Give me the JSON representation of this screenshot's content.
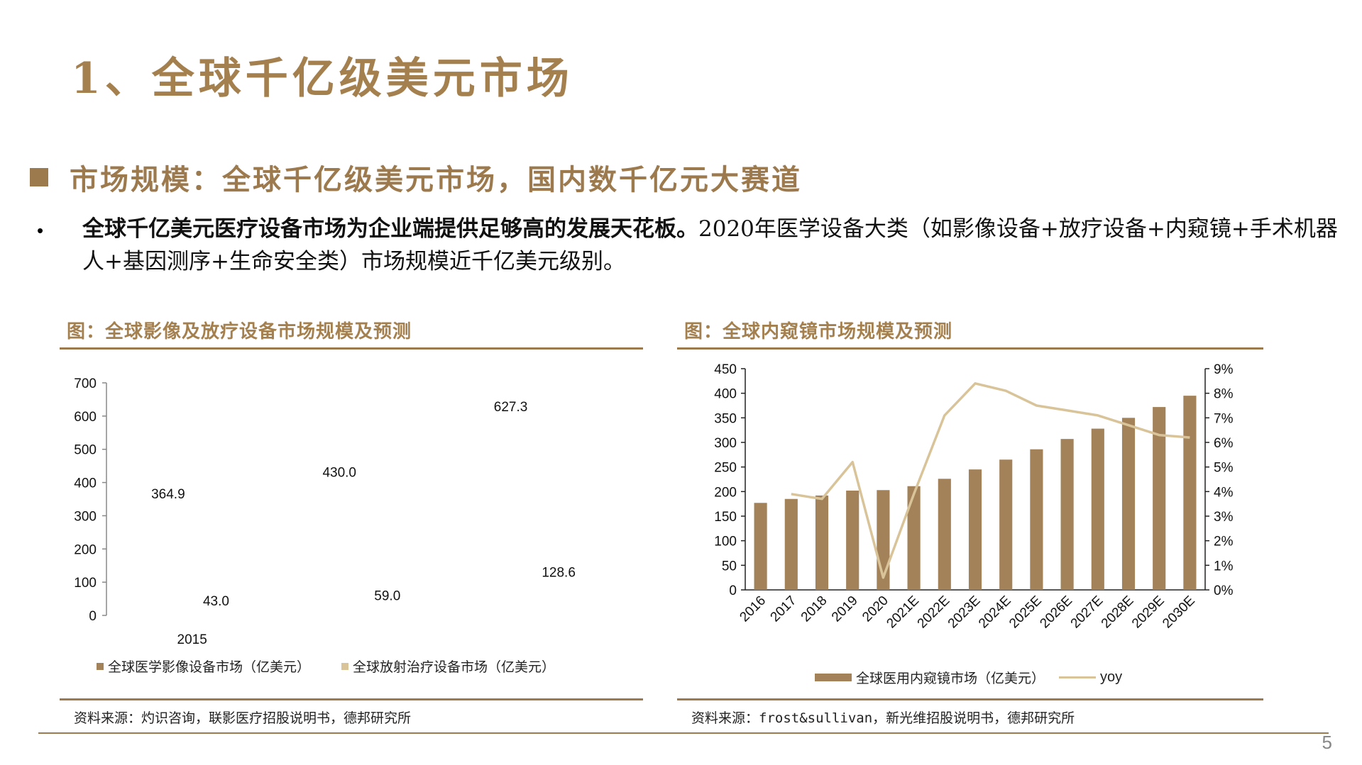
{
  "title": "1、全球千亿级美元市场",
  "section": "市场规模：全球千亿级美元市场，国内数千亿元大赛道",
  "bullet": {
    "marker": "•",
    "bold": "全球千亿美元医疗设备市场为企业端提供足够高的发展天花板。",
    "normal": "2020年医学设备大类（如影像设备+放疗设备+内窥镜+手术机器人+基因测序+生命安全类）市场规模近千亿美元级别。"
  },
  "left_panel": {
    "title": "图：全球影像及放疗设备市场规模及预测",
    "source": "资料来源：灼识咨询，联影医疗招股说明书，德邦研究所",
    "legend": [
      "全球医学影像设备市场（亿美元）",
      "全球放射治疗设备市场（亿美元）"
    ]
  },
  "right_panel": {
    "title": "图：全球内窥镜市场规模及预测",
    "source": "资料来源：frost&sullivan，新光维招股说明书，德邦研究所",
    "legend": [
      "全球医用内窥镜市场（亿美元）",
      "yoy"
    ]
  },
  "colors": {
    "brand": "#A5804F",
    "bar": "#A3825A",
    "line": "#D9C49A",
    "swatch_left_1": "#A3825A",
    "swatch_left_2": "#D9C49A"
  },
  "page_number": "5",
  "chart_data": [
    {
      "type": "bar",
      "title": "图：全球影像及放疗设备市场规模及预测",
      "categories": [
        "2015",
        "",
        ""
      ],
      "series": [
        {
          "name": "全球医学影像设备市场（亿美元）",
          "values": [
            364.9,
            430.0,
            627.3
          ]
        },
        {
          "name": "全球放射治疗设备市场（亿美元）",
          "values": [
            43.0,
            59.0,
            128.6
          ]
        }
      ],
      "ylim": [
        0,
        700
      ],
      "yticks": [
        "0",
        "100",
        "200",
        "300",
        "400",
        "500",
        "600",
        "700"
      ],
      "value_labels": [
        "364.9",
        "43.0",
        "430.0",
        "59.0",
        "627.3",
        "128.6"
      ],
      "bars_drawn": false
    },
    {
      "type": "bar",
      "title": "图：全球内窥镜市场规模及预测",
      "categories": [
        "2016",
        "2017",
        "2018",
        "2019",
        "2020",
        "2021E",
        "2022E",
        "2023E",
        "2024E",
        "2025E",
        "2026E",
        "2027E",
        "2028E",
        "2029E",
        "2030E"
      ],
      "series": [
        {
          "name": "全球医用内窥镜市场（亿美元）",
          "type": "bar",
          "axis": "left",
          "values": [
            177,
            185,
            192,
            202,
            203,
            211,
            226,
            245,
            265,
            286,
            307,
            328,
            350,
            372,
            395
          ]
        },
        {
          "name": "yoy",
          "type": "line",
          "axis": "right",
          "values": [
            null,
            3.9,
            3.7,
            5.2,
            0.5,
            3.9,
            7.1,
            8.4,
            8.1,
            7.5,
            7.3,
            7.1,
            6.7,
            6.3,
            6.2
          ]
        }
      ],
      "ylim": [
        0,
        450
      ],
      "y2lim": [
        0,
        9
      ],
      "yticks": [
        "0",
        "50",
        "100",
        "150",
        "200",
        "250",
        "300",
        "350",
        "400",
        "450"
      ],
      "y2ticks": [
        "0%",
        "1%",
        "2%",
        "3%",
        "4%",
        "5%",
        "6%",
        "7%",
        "8%",
        "9%"
      ]
    }
  ]
}
